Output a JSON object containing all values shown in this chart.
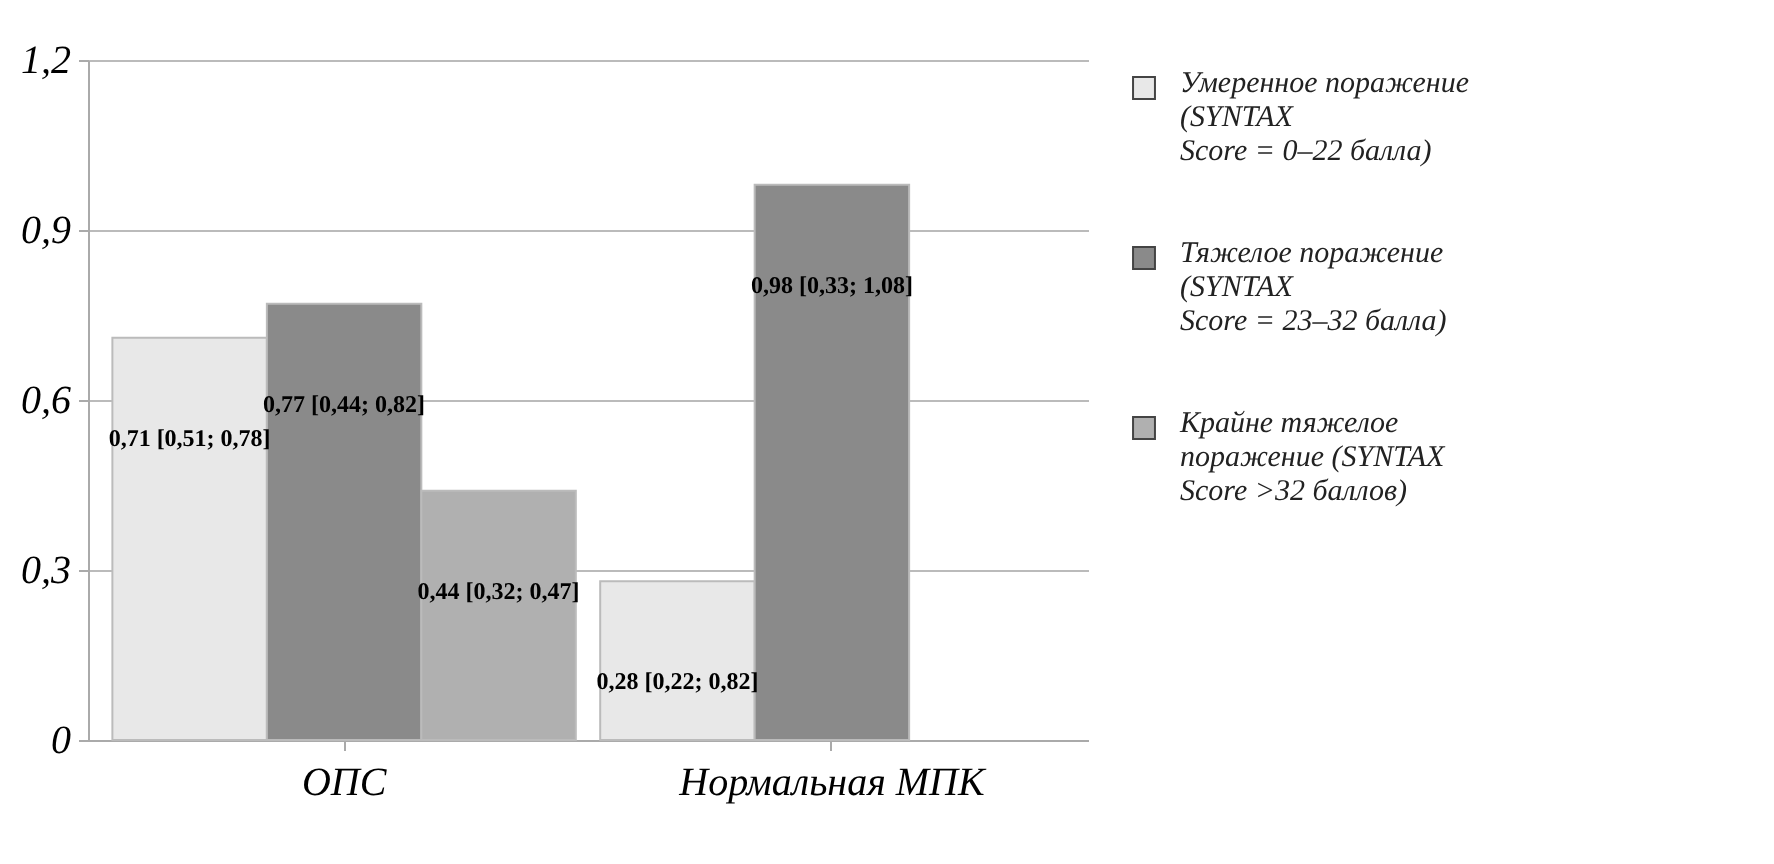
{
  "chart_data": {
    "type": "bar",
    "categories": [
      "ОПС",
      "Нормальная МПК"
    ],
    "series": [
      {
        "name": "Умеренное поражение\n(SYNTAX\nScore = 0–22 балла)",
        "color": "#e8e8e8",
        "values": [
          0.71,
          0.28
        ],
        "value_labels": [
          "0,71 [0,51; 0,78]",
          "0,28 [0,22; 0,82]"
        ]
      },
      {
        "name": "Тяжелое поражение\n(SYNTAX\nScore = 23–32 балла)",
        "color": "#8a8a8a",
        "values": [
          0.77,
          0.98
        ],
        "value_labels": [
          "0,77 [0,44; 0,82]",
          "0,98 [0,33; 1,08]"
        ]
      },
      {
        "name": "Крайне тяжелое\nпоражение (SYNTAX\nScore >32 баллов)",
        "color": "#b0b0b0",
        "values": [
          0.44,
          null
        ],
        "value_labels": [
          "0,44 [0,32; 0,47]",
          null
        ]
      }
    ],
    "ylim": [
      0,
      1.2
    ],
    "yticks": [
      {
        "value": 0,
        "label": "0"
      },
      {
        "value": 0.3,
        "label": "0,3"
      },
      {
        "value": 0.6,
        "label": "0,6"
      },
      {
        "value": 0.9,
        "label": "0,9"
      },
      {
        "value": 1.2,
        "label": "1,2"
      }
    ],
    "grid": "y",
    "legend": "right"
  }
}
